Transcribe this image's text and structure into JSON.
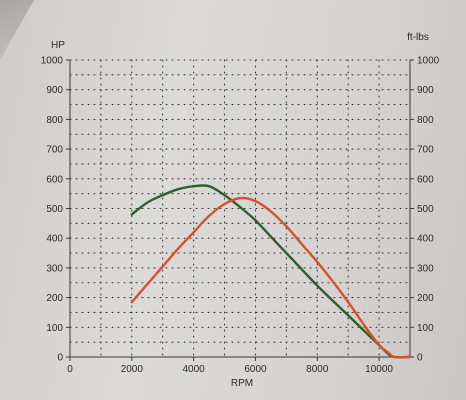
{
  "chart_data": {
    "type": "line",
    "title": "",
    "xlabel": "RPM",
    "ylabel_left": "HP",
    "ylabel_right": "ft-lbs",
    "xlim": [
      0,
      11000
    ],
    "ylim_left": [
      0,
      1000
    ],
    "ylim_right": [
      0,
      1000
    ],
    "x_ticks": [
      0,
      2000,
      4000,
      6000,
      8000,
      10000
    ],
    "y_ticks_left": [
      0,
      100,
      200,
      300,
      400,
      500,
      600,
      700,
      800,
      900,
      1000
    ],
    "y_ticks_right": [
      0,
      100,
      200,
      300,
      400,
      500,
      600,
      700,
      800,
      900,
      1000
    ],
    "grid": true,
    "series": [
      {
        "color": "#2e5f2a",
        "axis": "left",
        "x": [
          2000,
          2500,
          3000,
          3500,
          4000,
          4500,
          5000,
          5500,
          6000,
          6500,
          7000,
          7500,
          8000,
          8500,
          9000,
          9500,
          10000,
          10300,
          10500,
          11000
        ],
        "y": [
          480,
          520,
          545,
          565,
          575,
          575,
          545,
          505,
          460,
          405,
          350,
          295,
          240,
          190,
          140,
          90,
          40,
          10,
          0,
          0
        ]
      },
      {
        "color": "#d9502e",
        "axis": "right",
        "x": [
          2000,
          2500,
          3000,
          3500,
          4000,
          4500,
          5000,
          5500,
          6000,
          6500,
          7000,
          7500,
          8000,
          8500,
          9000,
          9500,
          10000,
          10300,
          10500,
          11000
        ],
        "y": [
          185,
          245,
          305,
          365,
          420,
          475,
          515,
          535,
          525,
          490,
          440,
          380,
          320,
          255,
          185,
          110,
          40,
          15,
          0,
          0
        ]
      }
    ]
  }
}
